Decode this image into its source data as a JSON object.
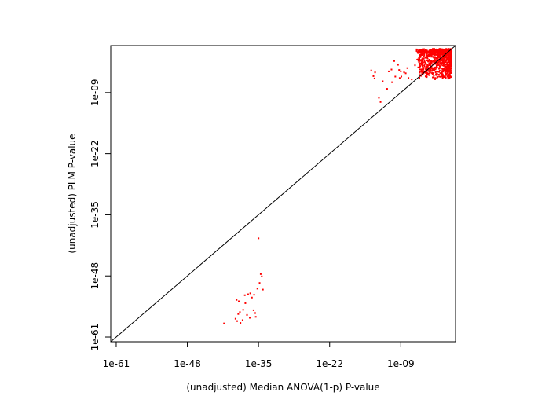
{
  "chart_data": {
    "type": "scatter",
    "title": "",
    "xlabel": "(unadjusted) Median ANOVA(1-p) P-value",
    "ylabel": "(unadjusted) PLM P-value",
    "scale": "log10",
    "xlim_log10": [
      -62,
      1
    ],
    "ylim_log10": [
      -62,
      1
    ],
    "x_ticks": [
      {
        "log10": -61,
        "label": "1e-61"
      },
      {
        "log10": -48,
        "label": "1e-48"
      },
      {
        "log10": -35,
        "label": "1e-35"
      },
      {
        "log10": -22,
        "label": "1e-22"
      },
      {
        "log10": -9,
        "label": "1e-09"
      }
    ],
    "y_ticks": [
      {
        "log10": -61,
        "label": "1e-61"
      },
      {
        "log10": -48,
        "label": "1e-48"
      },
      {
        "log10": -35,
        "label": "1e-35"
      },
      {
        "log10": -22,
        "label": "1e-22"
      },
      {
        "log10": -9,
        "label": "1e-09"
      }
    ],
    "reference_line": "y = x",
    "grid": false,
    "legend": "none",
    "point_color": "#ff0000",
    "line_color": "#000000",
    "dense_cluster_near_log10": [
      -1.5,
      -1.5
    ],
    "points_log10": [
      [
        -35,
        -40
      ],
      [
        -34.6,
        -47.6
      ],
      [
        -34.4,
        -48.1
      ],
      [
        -34.8,
        -49.5
      ],
      [
        -35.2,
        -50.7
      ],
      [
        -34.2,
        -50.9
      ],
      [
        -36.5,
        -51.7
      ],
      [
        -36.9,
        -51.9
      ],
      [
        -37.5,
        -52.1
      ],
      [
        -36.2,
        -52.6
      ],
      [
        -37.4,
        -53.8
      ],
      [
        -35.9,
        -55.3
      ],
      [
        -35.6,
        -55.9
      ],
      [
        -37.8,
        -55.2
      ],
      [
        -38.4,
        -55.7
      ],
      [
        -38.7,
        -56.1
      ],
      [
        -37.9,
        -57.4
      ],
      [
        -38.9,
        -57.6
      ],
      [
        -39.2,
        -57.1
      ],
      [
        -38.3,
        -58.0
      ],
      [
        -35.5,
        -56.7
      ],
      [
        -36.6,
        -56.9
      ],
      [
        -39.0,
        -53.1
      ],
      [
        -37.1,
        -56.3
      ],
      [
        -38.6,
        -53.4
      ],
      [
        -41.3,
        -58.1
      ],
      [
        -35.8,
        -52.0
      ],
      [
        -14.4,
        -4.3
      ],
      [
        -13.7,
        -4.7
      ],
      [
        -14.0,
        -5.5
      ],
      [
        -13.8,
        -6.0
      ],
      [
        -10.2,
        -2.3
      ],
      [
        -10.0,
        -5.6
      ],
      [
        -9.0,
        -4.5
      ],
      [
        -8.4,
        -4.7
      ],
      [
        -6.0,
        -2.0
      ],
      [
        -4.5,
        -1.6
      ],
      [
        -4.0,
        -2.4
      ],
      [
        -10.6,
        -6.8
      ],
      [
        -11.5,
        -8.2
      ],
      [
        -12.7,
        -11.0
      ],
      [
        -8.1,
        -4.9
      ],
      [
        -7.6,
        -5.9
      ],
      [
        -9.3,
        -4.2
      ],
      [
        -12.3,
        -6.6
      ],
      [
        -3.0,
        -4.2
      ],
      [
        -9.2,
        -5.9
      ],
      [
        -10.7,
        -4.1
      ],
      [
        -5.2,
        -2.6
      ],
      [
        -7.8,
        -3.8
      ],
      [
        -8.9,
        -5.6
      ],
      [
        -7.0,
        -6.2
      ],
      [
        -13.0,
        -10.1
      ],
      [
        -11.2,
        -4.5
      ],
      [
        -6.4,
        -3.2
      ],
      [
        -9.5,
        -3.1
      ]
    ],
    "cluster_sample_count": 900
  }
}
